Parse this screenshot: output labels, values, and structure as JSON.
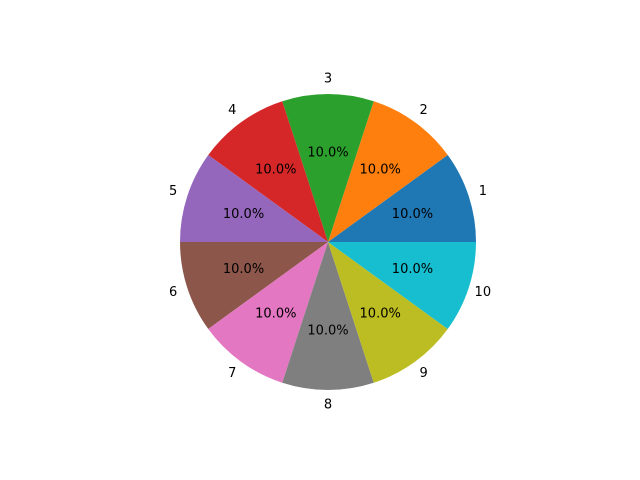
{
  "chart_data": {
    "type": "pie",
    "categories": [
      "1",
      "2",
      "3",
      "4",
      "5",
      "6",
      "7",
      "8",
      "9",
      "10"
    ],
    "values": [
      10,
      10,
      10,
      10,
      10,
      10,
      10,
      10,
      10,
      10
    ],
    "percent_labels": [
      "10.0%",
      "10.0%",
      "10.0%",
      "10.0%",
      "10.0%",
      "10.0%",
      "10.0%",
      "10.0%",
      "10.0%",
      "10.0%"
    ],
    "colors": [
      "#1f77b4",
      "#ff7f0e",
      "#2ca02c",
      "#d62728",
      "#9467bd",
      "#8c564b",
      "#e377c2",
      "#7f7f7f",
      "#bcbd22",
      "#17becf"
    ],
    "start_angle_deg": 0,
    "direction": "counterclockwise",
    "legend": "none"
  }
}
